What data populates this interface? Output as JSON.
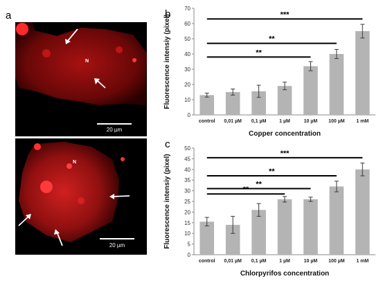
{
  "panels": {
    "a": "a",
    "b": "b",
    "c": "c"
  },
  "micrographs": {
    "top": {
      "nucleus_label": "N",
      "scale_label": "20 µm"
    },
    "bottom": {
      "nucleus_label": "N",
      "scale_label": "20 µm"
    }
  },
  "colors": {
    "bar": "#b4b4b4",
    "error": "#3a3a3a",
    "fluorescence": "#ff2020"
  },
  "chart_data": [
    {
      "type": "bar",
      "panel": "b",
      "categories": [
        "control",
        "0,01 µM",
        "0,1 µM",
        "1 µM",
        "10 µM",
        "100 µM",
        "1 mM"
      ],
      "values": [
        13,
        15,
        15.5,
        19,
        32,
        40,
        55
      ],
      "errors": [
        1.3,
        2,
        4,
        2.5,
        3,
        3,
        4.5
      ],
      "xlabel": "Copper concentration",
      "ylabel": "Fluorescence intensiy (pixel)",
      "ylim": [
        0,
        70
      ],
      "yticks": [
        0,
        10,
        20,
        30,
        40,
        50,
        60,
        70
      ],
      "significance": [
        {
          "label": "**",
          "from": 0,
          "to": 4,
          "y": 38
        },
        {
          "label": "**",
          "from": 0,
          "to": 5,
          "y": 47
        },
        {
          "label": "***",
          "from": 0,
          "to": 6,
          "y": 63
        }
      ]
    },
    {
      "type": "bar",
      "panel": "c",
      "categories": [
        "control",
        "0,01 µM",
        "0,1 µM",
        "1 µM",
        "10 µM",
        "100 µM",
        "1 mM"
      ],
      "values": [
        15.5,
        14,
        21,
        26,
        26,
        32,
        40
      ],
      "errors": [
        2,
        4,
        3,
        1.3,
        1,
        2.5,
        3
      ],
      "xlabel": "Chlorpyrifos concentration",
      "ylabel": "Fluorescence intensiy (pixel)",
      "ylim": [
        0,
        50
      ],
      "yticks": [
        0,
        5,
        10,
        15,
        20,
        25,
        30,
        35,
        40,
        45,
        50
      ],
      "significance": [
        {
          "label": "**",
          "from": 0,
          "to": 3,
          "y": 28.5
        },
        {
          "label": "**",
          "from": 0,
          "to": 4,
          "y": 31
        },
        {
          "label": "**",
          "from": 0,
          "to": 5,
          "y": 37
        },
        {
          "label": "***",
          "from": 0,
          "to": 6,
          "y": 45.5
        }
      ]
    }
  ]
}
